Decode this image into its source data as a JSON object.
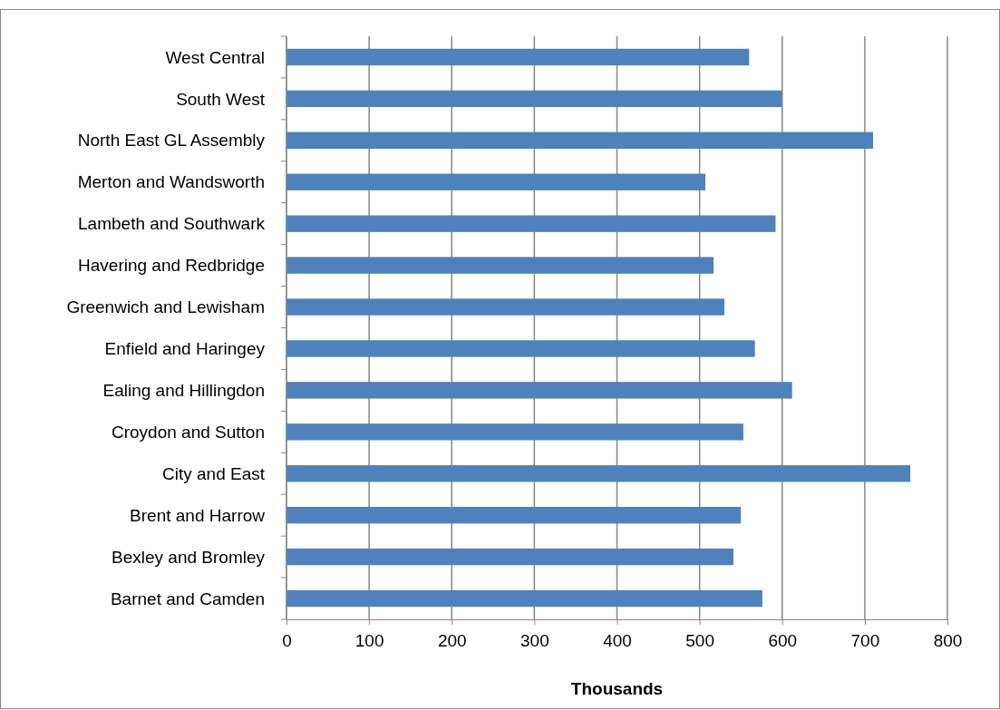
{
  "chart_data": {
    "type": "bar",
    "orientation": "horizontal",
    "xlabel": "Thousands",
    "categories": [
      "West Central",
      "South West",
      "North East GL Assembly",
      "Merton and Wandsworth",
      "Lambeth and Southwark",
      "Havering and Redbridge",
      "Greenwich and Lewisham",
      "Enfield and Haringey",
      "Ealing and Hillingdon",
      "Croydon and Sutton",
      "City and East",
      "Brent and Harrow",
      "Bexley and Bromley",
      "Barnet and Camden"
    ],
    "values": [
      560,
      600,
      710,
      507,
      592,
      517,
      530,
      567,
      612,
      553,
      755,
      550,
      541,
      576
    ],
    "color": "#4f81bd",
    "xlim": [
      0,
      800
    ],
    "xticks": [
      0,
      100,
      200,
      300,
      400,
      500,
      600,
      700,
      800
    ],
    "grid": "x"
  }
}
